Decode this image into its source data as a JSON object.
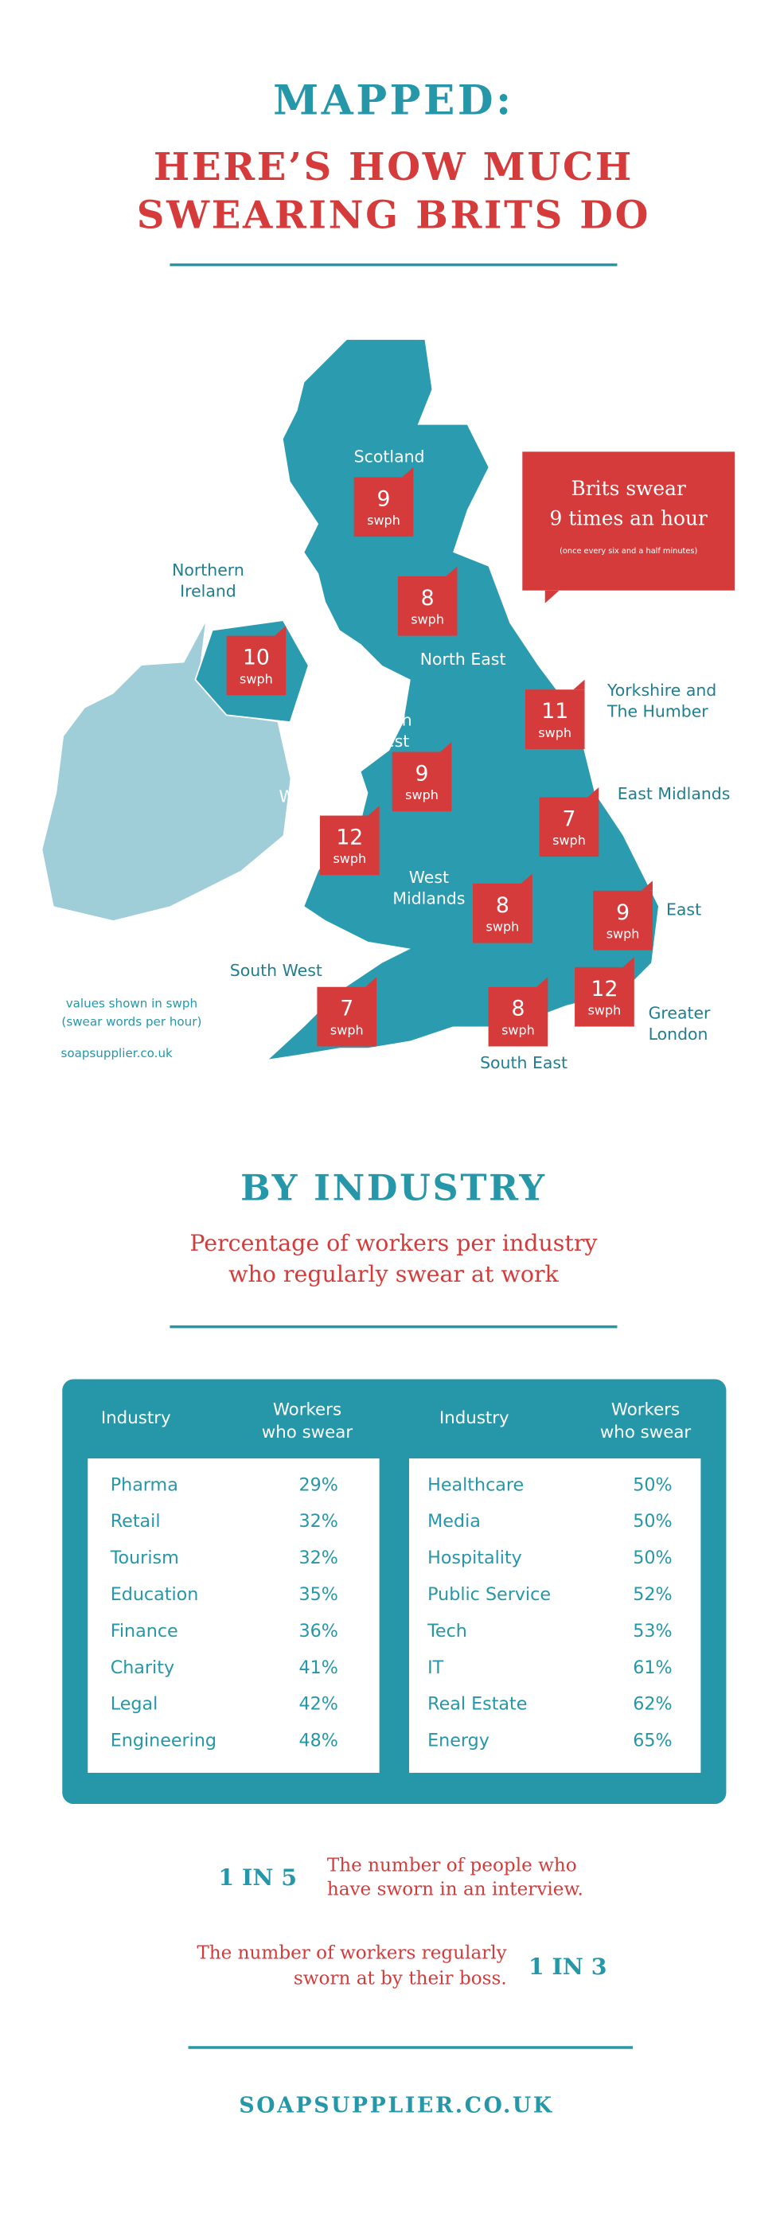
{
  "header": {
    "title": "MAPPED:",
    "subtitle_lines": [
      "HERE’S HOW MUCH",
      "SWEARING BRITS DO"
    ]
  },
  "map": {
    "regions": [
      {
        "label_lines": [
          "Scotland"
        ],
        "value": 9,
        "unit": "swph"
      },
      {
        "label_lines": [
          "North East"
        ],
        "value": 8,
        "unit": "swph"
      },
      {
        "label_lines": [
          "Northern",
          "Ireland"
        ],
        "value": 10,
        "unit": "swph"
      },
      {
        "label_lines": [
          "Yorkshire and",
          "The Humber"
        ],
        "value": 11,
        "unit": "swph"
      },
      {
        "label_lines": [
          "North",
          "West"
        ],
        "value": 9,
        "unit": "swph"
      },
      {
        "label_lines": [
          "Wales"
        ],
        "value": 12,
        "unit": "swph"
      },
      {
        "label_lines": [
          "East Midlands"
        ],
        "value": 7,
        "unit": "swph"
      },
      {
        "label_lines": [
          "West",
          "Midlands"
        ],
        "value": 8,
        "unit": "swph"
      },
      {
        "label_lines": [
          "East"
        ],
        "value": 9,
        "unit": "swph"
      },
      {
        "label_lines": [
          "South West"
        ],
        "value": 7,
        "unit": "swph"
      },
      {
        "label_lines": [
          "South East"
        ],
        "value": 8,
        "unit": "swph"
      },
      {
        "label_lines": [
          "Greater",
          "London"
        ],
        "value": 12,
        "unit": "swph"
      }
    ],
    "callout": {
      "lines": [
        "Brits swear",
        "9 times an hour"
      ],
      "note": "(once every six and a half minutes)"
    },
    "notes": [
      "values shown in swph",
      "(swear words per hour)"
    ],
    "source": "soapsupplier.co.uk"
  },
  "industry": {
    "title": "BY INDUSTRY",
    "subtitle_lines": [
      "Percentage of workers per industry",
      "who regularly swear at work"
    ],
    "tables": [
      {
        "header": {
          "industry": "Industry",
          "workers_lines": [
            "Workers",
            "who swear"
          ]
        },
        "rows": [
          [
            "Pharma",
            "29%"
          ],
          [
            "Retail",
            "32%"
          ],
          [
            "Tourism",
            "32%"
          ],
          [
            "Education",
            "35%"
          ],
          [
            "Finance",
            "36%"
          ],
          [
            "Charity",
            "41%"
          ],
          [
            "Legal",
            "42%"
          ],
          [
            "Engineering",
            "48%"
          ]
        ]
      },
      {
        "header": {
          "industry": "Industry",
          "workers_lines": [
            "Workers",
            "who swear"
          ]
        },
        "rows": [
          [
            "Healthcare",
            "50%"
          ],
          [
            "Media",
            "50%"
          ],
          [
            "Hospitality",
            "50%"
          ],
          [
            "Public Service",
            "52%"
          ],
          [
            "Tech",
            "53%"
          ],
          [
            "IT",
            "61%"
          ],
          [
            "Real Estate",
            "62%"
          ],
          [
            "Energy",
            "65%"
          ]
        ]
      }
    ]
  },
  "stats": [
    {
      "figure": "1 IN 5",
      "lines": [
        "The number of people who",
        "have sworn in an interview."
      ]
    },
    {
      "figure": "1 IN 3",
      "lines": [
        "The number of workers regularly",
        "sworn at by their boss."
      ]
    }
  ],
  "footer": "SOAPSUPPLIER.CO.UK"
}
